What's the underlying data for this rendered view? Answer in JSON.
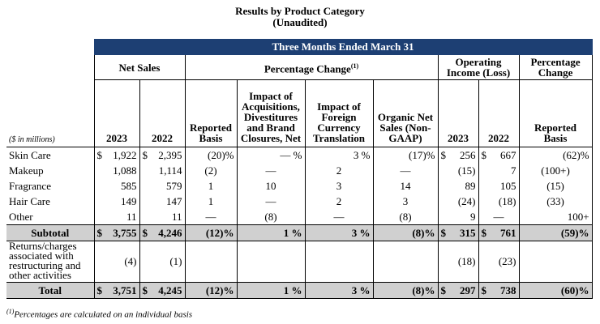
{
  "title": "Results by Product Category",
  "subtitle": "(Unaudited)",
  "band": "Three Months Ended March 31",
  "groups": {
    "net_sales": "Net Sales",
    "pct_change": "Percentage Change",
    "pct_change_sup": "(1)",
    "op_income": "Operating Income (Loss)",
    "pct_change2": "Percentage Change"
  },
  "columns": {
    "y2023": "2023",
    "y2022": "2022",
    "reported": "Reported Basis",
    "impact_acq": "Impact of Acquisitions, Divestitures and Brand Closures, Net",
    "impact_fx": "Impact of Foreign Currency Translation",
    "organic": "Organic Net Sales (Non-GAAP)",
    "op2023": "2023",
    "op2022": "2022",
    "reported2": "Reported Basis"
  },
  "units_label": "($ in millions)",
  "rows": [
    {
      "label": "Skin Care",
      "ns23": "1,922",
      "ns22": "2,395",
      "rep": "(20)%",
      "acq": "— %",
      "fx": "3 %",
      "org": "(17)%",
      "op23": "256",
      "op22": "667",
      "pct": "(62)%"
    },
    {
      "label": "Makeup",
      "ns23": "1,088",
      "ns22": "1,114",
      "rep": "(2)",
      "acq": "—",
      "fx": "2",
      "org": "—",
      "op23": "(15)",
      "op22": "7",
      "pct": "(100+)"
    },
    {
      "label": "Fragrance",
      "ns23": "585",
      "ns22": "579",
      "rep": "1",
      "acq": "10",
      "fx": "3",
      "org": "14",
      "op23": "89",
      "op22": "105",
      "pct": "(15)"
    },
    {
      "label": "Hair Care",
      "ns23": "149",
      "ns22": "147",
      "rep": "1",
      "acq": "—",
      "fx": "2",
      "org": "3",
      "op23": "(24)",
      "op22": "(18)",
      "pct": "(33)"
    },
    {
      "label": "Other",
      "ns23": "11",
      "ns22": "11",
      "rep": "—",
      "acq": "(8)",
      "fx": "—",
      "org": "(8)",
      "op23": "9",
      "op22": "—",
      "pct": "100+"
    }
  ],
  "subtotal": {
    "label": "Subtotal",
    "ns23": "3,755",
    "ns22": "4,246",
    "rep": "(12)%",
    "acq": "1 %",
    "fx": "3 %",
    "org": "(8)%",
    "op23": "315",
    "op22": "761",
    "pct": "(59)%"
  },
  "returns": {
    "label": "Returns/charges associated with restructuring and other activities",
    "ns23": "(4)",
    "ns22": "(1)",
    "op23": "(18)",
    "op22": "(23)"
  },
  "total": {
    "label": "Total",
    "ns23": "3,751",
    "ns22": "4,245",
    "rep": "(12)%",
    "acq": "1 %",
    "fx": "3 %",
    "org": "(8)%",
    "op23": "297",
    "op22": "738",
    "pct": "(60)%"
  },
  "currency": "$",
  "footnote_sup": "(1)",
  "footnote": "Percentages are calculated on an individual basis"
}
